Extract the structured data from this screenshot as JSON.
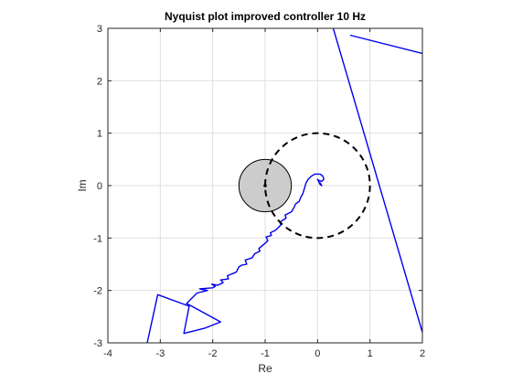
{
  "chart_data": {
    "type": "line",
    "title": "Nyquist plot improved controller 10 Hz",
    "xlabel": "Re",
    "ylabel": "Im",
    "xlim": [
      -4,
      2
    ],
    "ylim": [
      -3,
      3
    ],
    "xticks": [
      -4,
      -3,
      -2,
      -1,
      0,
      1,
      2
    ],
    "yticks": [
      -3,
      -2,
      -1,
      0,
      1,
      2,
      3
    ],
    "xtick_labels": [
      "-4",
      "-3",
      "-2",
      "-1",
      "0",
      "1",
      "2"
    ],
    "ytick_labels": [
      "-3",
      "-2",
      "-1",
      "0",
      "1",
      "2",
      "3"
    ],
    "grid": true,
    "aspect": "equal",
    "series": [
      {
        "style": "solid",
        "color": "#0000ee",
        "points": [
          [
            0.3,
            3.0
          ],
          [
            2.0,
            -2.8
          ]
        ]
      },
      {
        "style": "solid",
        "color": "#0000ee",
        "points": [
          [
            0.62,
            2.87
          ],
          [
            2.0,
            2.52
          ]
        ]
      },
      {
        "style": "solid",
        "color": "#0000ee",
        "points": [
          [
            -3.25,
            -3.0
          ],
          [
            -3.05,
            -2.08
          ],
          [
            -2.45,
            -2.3
          ],
          [
            -2.55,
            -2.82
          ],
          [
            -2.15,
            -2.72
          ],
          [
            -1.85,
            -2.6
          ],
          [
            -2.4,
            -2.3
          ],
          [
            -2.5,
            -2.25
          ],
          [
            -2.3,
            -2.05
          ],
          [
            -2.1,
            -2.0
          ],
          [
            -2.25,
            -1.97
          ],
          [
            -2.0,
            -1.95
          ],
          [
            -1.95,
            -1.92
          ],
          [
            -2.02,
            -1.88
          ],
          [
            -1.9,
            -1.9
          ],
          [
            -1.8,
            -1.85
          ],
          [
            -1.85,
            -1.8
          ],
          [
            -1.7,
            -1.78
          ],
          [
            -1.72,
            -1.72
          ],
          [
            -1.55,
            -1.65
          ],
          [
            -1.5,
            -1.55
          ],
          [
            -1.45,
            -1.52
          ],
          [
            -1.35,
            -1.5
          ],
          [
            -1.38,
            -1.42
          ],
          [
            -1.25,
            -1.38
          ],
          [
            -1.2,
            -1.3
          ],
          [
            -1.1,
            -1.25
          ],
          [
            -1.12,
            -1.2
          ],
          [
            -1.0,
            -1.1
          ],
          [
            -0.95,
            -1.05
          ],
          [
            -0.98,
            -0.98
          ],
          [
            -0.88,
            -0.95
          ],
          [
            -0.9,
            -0.9
          ],
          [
            -0.8,
            -0.85
          ],
          [
            -0.7,
            -0.75
          ],
          [
            -0.72,
            -0.7
          ],
          [
            -0.6,
            -0.62
          ],
          [
            -0.62,
            -0.56
          ],
          [
            -0.5,
            -0.5
          ],
          [
            -0.45,
            -0.42
          ],
          [
            -0.42,
            -0.35
          ],
          [
            -0.35,
            -0.3
          ],
          [
            -0.32,
            -0.22
          ],
          [
            -0.28,
            -0.15
          ],
          [
            -0.25,
            -0.05
          ],
          [
            -0.22,
            0.05
          ],
          [
            -0.18,
            0.12
          ],
          [
            -0.12,
            0.18
          ],
          [
            -0.05,
            0.22
          ],
          [
            0.05,
            0.22
          ],
          [
            0.1,
            0.18
          ],
          [
            0.12,
            0.12
          ],
          [
            0.08,
            0.08
          ],
          [
            0.02,
            0.1
          ],
          [
            0.0,
            0.12
          ],
          [
            0.02,
            0.08
          ],
          [
            0.05,
            0.02
          ],
          [
            0.08,
            0.0
          ],
          [
            0.05,
            0.05
          ],
          [
            0.02,
            0.06
          ]
        ]
      },
      {
        "style": "dashed",
        "color": "#000000",
        "shape": "circle",
        "center": [
          0,
          0
        ],
        "radius": 1
      }
    ],
    "shaded_region": {
      "shape": "circle",
      "center": [
        -1,
        0
      ],
      "radius": 0.5,
      "fill": "#cccccc",
      "stroke": "#000000"
    },
    "marker": {
      "point": [
        -1,
        0
      ],
      "color": "#000000"
    }
  }
}
